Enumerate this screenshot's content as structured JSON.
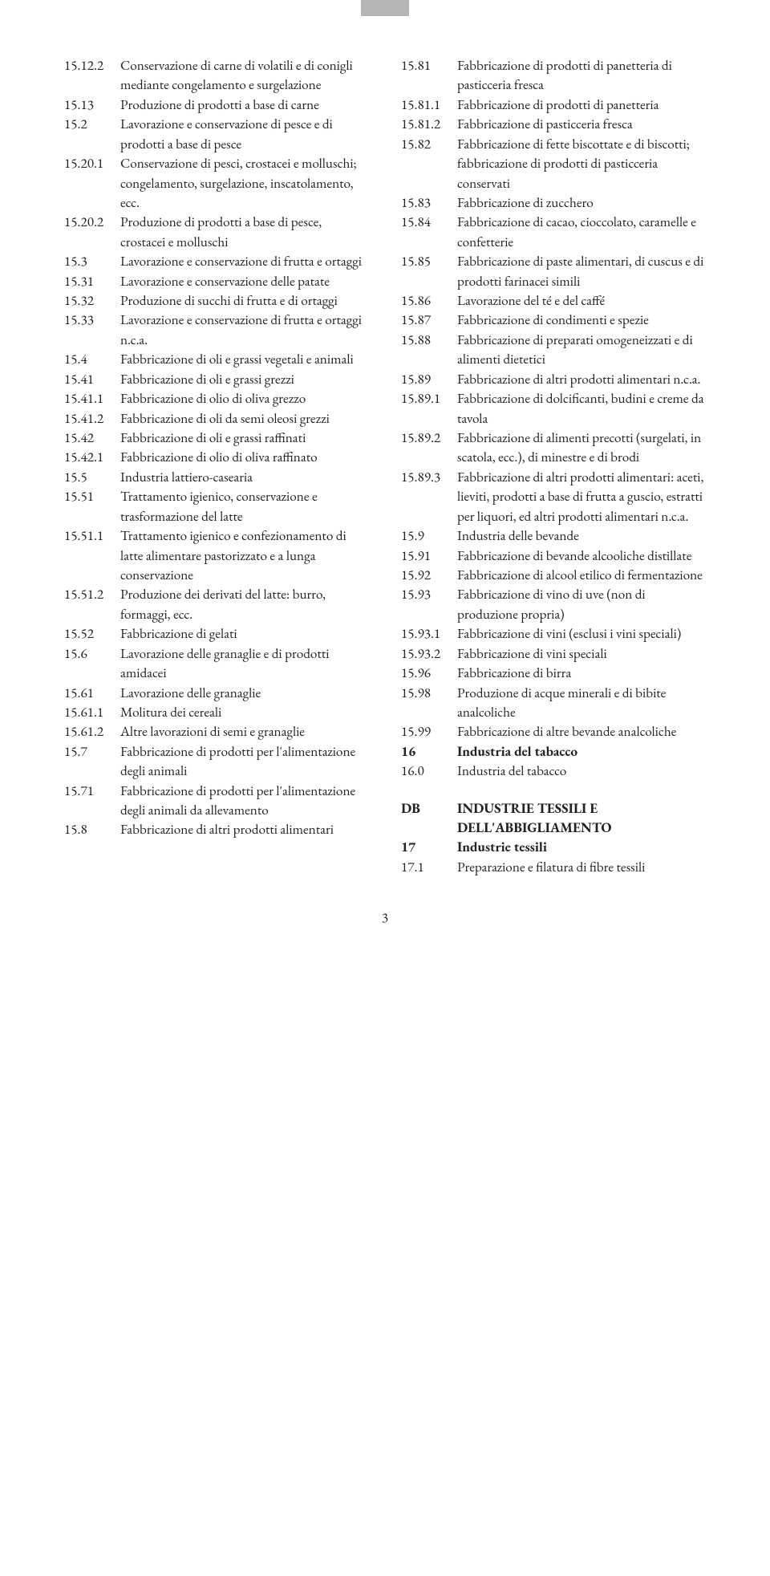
{
  "page_number": "3",
  "fonts": {
    "body_family": "Garamond serif",
    "body_size_pt": 11,
    "line_height": 1.42,
    "text_color": "#222222",
    "background": "#ffffff",
    "tab_color": "#b5b5b5"
  },
  "left": [
    {
      "code": "15.12.2",
      "desc": "Conservazione di carne di volatili e di conigli mediante congelamento e surgelazione"
    },
    {
      "code": "15.13",
      "desc": "Produzione di prodotti a base di carne"
    },
    {
      "code": "15.2",
      "desc": "Lavorazione e conservazione di pesce e di prodotti a base di pesce"
    },
    {
      "code": "15.20.1",
      "desc": "Conservazione di pesci, crostacei e molluschi; congelamento, surgelazione, inscatolamento, ecc."
    },
    {
      "code": "15.20.2",
      "desc": "Produzione di prodotti a base di pesce, crostacei e molluschi"
    },
    {
      "code": "15.3",
      "desc": "Lavorazione e conservazione di frutta e ortaggi"
    },
    {
      "code": "15.31",
      "desc": "Lavorazione e conservazione delle patate"
    },
    {
      "code": "15.32",
      "desc": "Produzione di succhi di frutta e di ortaggi"
    },
    {
      "code": "15.33",
      "desc": "Lavorazione e conservazione di frutta e ortaggi n.c.a."
    },
    {
      "code": "15.4",
      "desc": "Fabbricazione di oli e grassi vegetali e animali"
    },
    {
      "code": "15.41",
      "desc": "Fabbricazione di oli e grassi grezzi"
    },
    {
      "code": "15.41.1",
      "desc": "Fabbricazione di olio di oliva grezzo"
    },
    {
      "code": "15.41.2",
      "desc": "Fabbricazione di oli da semi oleosi grezzi"
    },
    {
      "code": "15.42",
      "desc": "Fabbricazione di oli e grassi raffinati"
    },
    {
      "code": "15.42.1",
      "desc": "Fabbricazione di olio di oliva raffinato"
    },
    {
      "code": "15.5",
      "desc": "Industria lattiero-casearia"
    },
    {
      "code": "15.51",
      "desc": "Trattamento igienico, conservazione e trasformazione del latte"
    },
    {
      "code": "15.51.1",
      "desc": "Trattamento igienico e confezionamento di latte alimentare pastorizzato e a lunga conservazione"
    },
    {
      "code": "15.51.2",
      "desc": "Produzione dei derivati del latte: burro, formaggi, ecc."
    },
    {
      "code": "15.52",
      "desc": "Fabbricazione di gelati"
    },
    {
      "code": "15.6",
      "desc": "Lavorazione delle granaglie e di prodotti amidacei"
    },
    {
      "code": "15.61",
      "desc": "Lavorazione delle granaglie"
    },
    {
      "code": "15.61.1",
      "desc": "Molitura dei cereali"
    },
    {
      "code": "15.61.2",
      "desc": "Altre lavorazioni di semi e granaglie"
    },
    {
      "code": "15.7",
      "desc": "Fabbricazione di prodotti per l'alimentazione degli animali"
    },
    {
      "code": "15.71",
      "desc": "Fabbricazione di prodotti per l'alimentazione degli animali da allevamento"
    },
    {
      "code": "15.8",
      "desc": "Fabbricazione di altri prodotti alimentari"
    }
  ],
  "right": [
    {
      "code": "15.81",
      "desc": "Fabbricazione di prodotti di panetteria di pasticceria fresca"
    },
    {
      "code": "15.81.1",
      "desc": "Fabbricazione di prodotti di panetteria"
    },
    {
      "code": "15.81.2",
      "desc": "Fabbricazione di pasticceria fresca"
    },
    {
      "code": "15.82",
      "desc": "Fabbricazione di fette biscottate e di biscotti; fabbricazione di prodotti di pasticceria conservati"
    },
    {
      "code": "15.83",
      "desc": "Fabbricazione di zucchero"
    },
    {
      "code": "15.84",
      "desc": "Fabbricazione di cacao, cioccolato, caramelle e confetterie"
    },
    {
      "code": "15.85",
      "desc": "Fabbricazione di paste alimentari, di cuscus e di prodotti farinacei simili"
    },
    {
      "code": "15.86",
      "desc": "Lavorazione del té e del caffé"
    },
    {
      "code": "15.87",
      "desc": "Fabbricazione di condimenti e spezie"
    },
    {
      "code": "15.88",
      "desc": "Fabbricazione di preparati omogeneizzati e di alimenti dietetici"
    },
    {
      "code": "15.89",
      "desc": "Fabbricazione di altri prodotti alimentari n.c.a."
    },
    {
      "code": "15.89.1",
      "desc": "Fabbricazione di dolcificanti, budini e creme da tavola"
    },
    {
      "code": "15.89.2",
      "desc": "Fabbricazione di alimenti precotti (surgelati, in scatola, ecc.), di minestre e di brodi"
    },
    {
      "code": "15.89.3",
      "desc": "Fabbricazione di altri prodotti alimentari: aceti, lieviti, prodotti a base di frutta a guscio, estratti per liquori, ed altri prodotti alimentari n.c.a."
    },
    {
      "code": "15.9",
      "desc": "Industria delle bevande"
    },
    {
      "code": "15.91",
      "desc": "Fabbricazione di bevande alcooliche distillate"
    },
    {
      "code": "15.92",
      "desc": "Fabbricazione di alcool etilico di fermentazione"
    },
    {
      "code": "15.93",
      "desc": "Fabbricazione di vino di uve (non di produzione propria)"
    },
    {
      "code": "15.93.1",
      "desc": "Fabbricazione di vini (esclusi i vini speciali)"
    },
    {
      "code": "15.93.2",
      "desc": "Fabbricazione di vini speciali"
    },
    {
      "code": "15.96",
      "desc": "Fabbricazione di birra"
    },
    {
      "code": "15.98",
      "desc": "Produzione di acque minerali e di bibite analcoliche"
    },
    {
      "code": "15.99",
      "desc": "Fabbricazione di altre bevande analcoliche"
    },
    {
      "code": "16",
      "desc": "Industria del tabacco",
      "bold": true
    },
    {
      "code": "16.0",
      "desc": "Industria del tabacco"
    },
    {
      "spacer": true
    },
    {
      "code": "DB",
      "desc": "INDUSTRIE TESSILI E DELL'ABBIGLIAMENTO",
      "bold": true
    },
    {
      "code": "17",
      "desc": "Industrie tessili",
      "bold": true
    },
    {
      "code": "17.1",
      "desc": "Preparazione e filatura di fibre tessili"
    }
  ]
}
